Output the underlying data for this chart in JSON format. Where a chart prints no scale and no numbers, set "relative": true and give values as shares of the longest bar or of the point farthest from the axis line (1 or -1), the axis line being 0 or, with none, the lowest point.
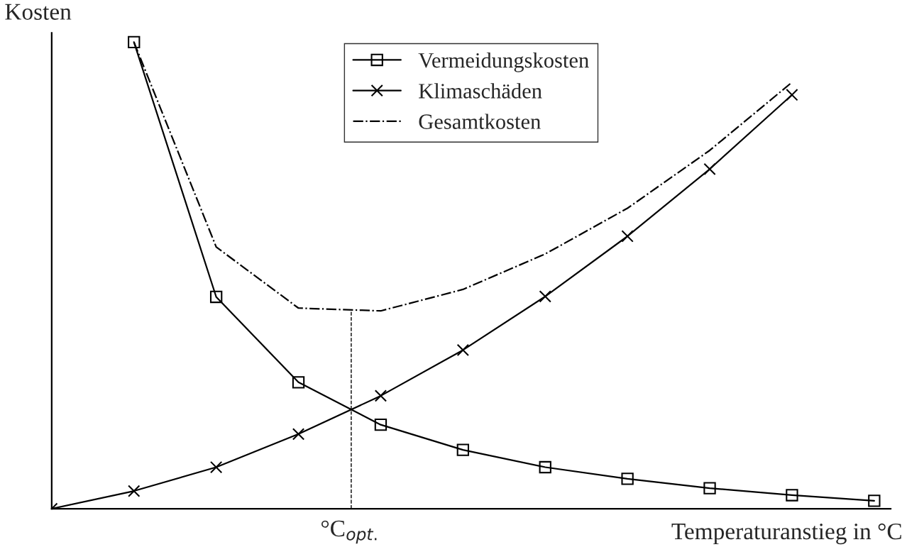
{
  "chart_data": {
    "type": "line",
    "relative": true,
    "xlabel": "Temperaturanstieg in °C",
    "ylabel": "Kosten",
    "categories": [
      null,
      null,
      null,
      null,
      null,
      null,
      null,
      null,
      null,
      null,
      null
    ],
    "series": [
      {
        "name": "Vermeidungskosten",
        "color": "#000000",
        "marker": "square",
        "line_style": "solid",
        "values": [
          null,
          1.0,
          0.454,
          0.271,
          0.18,
          0.126,
          0.089,
          0.064,
          0.044,
          0.029,
          0.017
        ]
      },
      {
        "name": "Klimaschäden",
        "color": "#000000",
        "marker": "cross",
        "line_style": "solid",
        "values": [
          0,
          0.038,
          0.089,
          0.16,
          0.242,
          0.34,
          0.455,
          0.584,
          0.728,
          0.887,
          null
        ]
      },
      {
        "name": "Gesamtkosten",
        "color": "#000000",
        "marker": "none",
        "line_style": "dashdot",
        "values": [
          null,
          1.0,
          0.561,
          0.43,
          0.424,
          0.47,
          0.546,
          0.644,
          0.768,
          0.914,
          null
        ]
      }
    ],
    "annotations": [
      "°C$_{opt.}$"
    ],
    "legend": "top",
    "grid": false
  }
}
